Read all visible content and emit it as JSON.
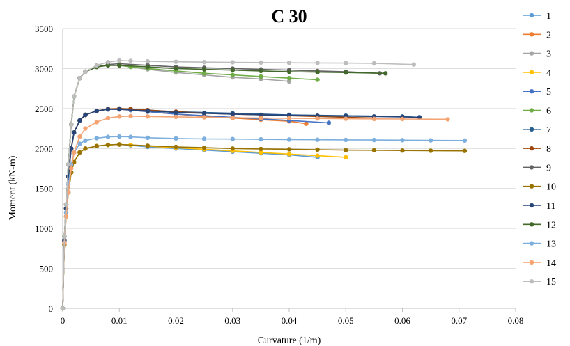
{
  "chart_data": {
    "type": "line",
    "title": "C 30",
    "xlabel": "Curvature (1/m)",
    "ylabel": "Moment (kN-m)",
    "xlim": [
      0,
      0.08
    ],
    "ylim": [
      0,
      3500
    ],
    "xticks": [
      "0",
      "0.01",
      "0.02",
      "0.03",
      "0.04",
      "0.05",
      "0.06",
      "0.07",
      "0.08"
    ],
    "yticks": [
      "0",
      "500",
      "1000",
      "1500",
      "2000",
      "2500",
      "3000",
      "3500"
    ],
    "grid": "horizontal",
    "legend": "right",
    "series": [
      {
        "name": "1",
        "color": "#5B9BD5",
        "x": [
          0,
          0.0003,
          0.0006,
          0.001,
          0.0015,
          0.002,
          0.003,
          0.004,
          0.006,
          0.008,
          0.01,
          0.012,
          0.015,
          0.02,
          0.025,
          0.03,
          0.035,
          0.04,
          0.045
        ],
        "y": [
          0,
          800,
          1150,
          1450,
          1700,
          1830,
          1950,
          2000,
          2030,
          2045,
          2050,
          2040,
          2020,
          2000,
          1980,
          1960,
          1940,
          1920,
          1890
        ]
      },
      {
        "name": "2",
        "color": "#ED7D31",
        "x": [
          0,
          0.0003,
          0.0006,
          0.001,
          0.0015,
          0.002,
          0.003,
          0.004,
          0.006,
          0.008,
          0.01,
          0.012,
          0.015,
          0.02,
          0.025,
          0.03,
          0.035,
          0.04,
          0.043
        ],
        "y": [
          0,
          850,
          1250,
          1650,
          2000,
          2200,
          2350,
          2420,
          2470,
          2490,
          2490,
          2480,
          2460,
          2430,
          2400,
          2380,
          2360,
          2340,
          2310
        ]
      },
      {
        "name": "3",
        "color": "#A5A5A5",
        "x": [
          0,
          0.0003,
          0.0006,
          0.001,
          0.0015,
          0.002,
          0.003,
          0.004,
          0.006,
          0.008,
          0.01,
          0.012,
          0.015,
          0.02,
          0.025,
          0.03,
          0.035,
          0.04
        ],
        "y": [
          0,
          900,
          1300,
          1800,
          2300,
          2650,
          2880,
          2960,
          3020,
          3040,
          3040,
          3020,
          2990,
          2950,
          2920,
          2890,
          2870,
          2840
        ]
      },
      {
        "name": "4",
        "color": "#FFC000",
        "x": [
          0,
          0.0003,
          0.0006,
          0.001,
          0.0015,
          0.002,
          0.003,
          0.004,
          0.006,
          0.008,
          0.01,
          0.012,
          0.015,
          0.02,
          0.025,
          0.03,
          0.035,
          0.04,
          0.045,
          0.05
        ],
        "y": [
          0,
          800,
          1150,
          1450,
          1700,
          1830,
          1950,
          2000,
          2030,
          2045,
          2050,
          2045,
          2030,
          2010,
          1990,
          1970,
          1950,
          1930,
          1910,
          1890
        ]
      },
      {
        "name": "5",
        "color": "#4472C4",
        "x": [
          0,
          0.0003,
          0.0006,
          0.001,
          0.0015,
          0.002,
          0.003,
          0.004,
          0.006,
          0.008,
          0.01,
          0.012,
          0.015,
          0.02,
          0.025,
          0.03,
          0.035,
          0.04,
          0.047
        ],
        "y": [
          0,
          850,
          1250,
          1650,
          2000,
          2200,
          2350,
          2420,
          2470,
          2490,
          2490,
          2480,
          2460,
          2430,
          2410,
          2390,
          2370,
          2350,
          2320
        ]
      },
      {
        "name": "6",
        "color": "#70AD47",
        "x": [
          0,
          0.0003,
          0.0006,
          0.001,
          0.0015,
          0.002,
          0.003,
          0.004,
          0.006,
          0.008,
          0.01,
          0.012,
          0.015,
          0.02,
          0.025,
          0.03,
          0.035,
          0.04,
          0.045
        ],
        "y": [
          0,
          900,
          1300,
          1800,
          2300,
          2650,
          2880,
          2960,
          3020,
          3040,
          3040,
          3020,
          3000,
          2970,
          2940,
          2920,
          2900,
          2880,
          2860
        ]
      },
      {
        "name": "7",
        "color": "#255E91",
        "x": [
          0,
          0.0003,
          0.0006,
          0.001,
          0.0015,
          0.002,
          0.003,
          0.004,
          0.006,
          0.008,
          0.01,
          0.015,
          0.02,
          0.03,
          0.04,
          0.05,
          0.06,
          0.063
        ],
        "y": [
          0,
          850,
          1250,
          1650,
          2000,
          2200,
          2350,
          2420,
          2470,
          2490,
          2500,
          2480,
          2460,
          2440,
          2420,
          2410,
          2400,
          2390
        ]
      },
      {
        "name": "8",
        "color": "#9E480E",
        "x": [
          0,
          0.0003,
          0.0006,
          0.001,
          0.0015,
          0.002,
          0.003,
          0.004,
          0.006,
          0.008,
          0.01,
          0.012,
          0.015,
          0.02,
          0.025,
          0.03,
          0.035,
          0.04,
          0.045,
          0.05,
          0.055
        ],
        "y": [
          0,
          850,
          1250,
          1650,
          2000,
          2200,
          2350,
          2420,
          2470,
          2495,
          2500,
          2495,
          2480,
          2460,
          2440,
          2430,
          2420,
          2410,
          2400,
          2390,
          2380
        ]
      },
      {
        "name": "9",
        "color": "#636363",
        "x": [
          0,
          0.0003,
          0.0006,
          0.001,
          0.0015,
          0.002,
          0.003,
          0.004,
          0.006,
          0.008,
          0.01,
          0.015,
          0.02,
          0.025,
          0.03,
          0.035,
          0.04,
          0.045,
          0.05,
          0.056
        ],
        "y": [
          0,
          900,
          1300,
          1800,
          2300,
          2650,
          2880,
          2960,
          3020,
          3050,
          3060,
          3040,
          3020,
          3010,
          3000,
          2990,
          2980,
          2970,
          2960,
          2940
        ]
      },
      {
        "name": "10",
        "color": "#997300",
        "x": [
          0,
          0.0003,
          0.0006,
          0.001,
          0.0015,
          0.002,
          0.003,
          0.004,
          0.006,
          0.008,
          0.01,
          0.015,
          0.02,
          0.025,
          0.03,
          0.035,
          0.04,
          0.045,
          0.05,
          0.055,
          0.06,
          0.065,
          0.071
        ],
        "y": [
          0,
          800,
          1150,
          1450,
          1700,
          1830,
          1950,
          2000,
          2030,
          2045,
          2050,
          2035,
          2020,
          2010,
          2000,
          1995,
          1990,
          1985,
          1980,
          1978,
          1975,
          1972,
          1970
        ]
      },
      {
        "name": "11",
        "color": "#264478",
        "x": [
          0,
          0.0003,
          0.0006,
          0.001,
          0.0015,
          0.002,
          0.003,
          0.004,
          0.006,
          0.008,
          0.01,
          0.015,
          0.02,
          0.025,
          0.03,
          0.035,
          0.04,
          0.045,
          0.05,
          0.055,
          0.06,
          0.063
        ],
        "y": [
          0,
          850,
          1250,
          1650,
          2000,
          2200,
          2350,
          2420,
          2470,
          2490,
          2490,
          2470,
          2450,
          2440,
          2430,
          2420,
          2415,
          2410,
          2405,
          2400,
          2395,
          2390
        ]
      },
      {
        "name": "12",
        "color": "#43682B",
        "x": [
          0,
          0.0003,
          0.0006,
          0.001,
          0.0015,
          0.002,
          0.003,
          0.004,
          0.006,
          0.008,
          0.01,
          0.015,
          0.02,
          0.025,
          0.03,
          0.035,
          0.04,
          0.045,
          0.05,
          0.057
        ],
        "y": [
          0,
          900,
          1300,
          1800,
          2300,
          2650,
          2880,
          2960,
          3020,
          3040,
          3040,
          3020,
          3000,
          2990,
          2980,
          2970,
          2960,
          2955,
          2950,
          2940
        ]
      },
      {
        "name": "13",
        "color": "#7CAFDD",
        "x": [
          0,
          0.0003,
          0.0006,
          0.001,
          0.0015,
          0.002,
          0.003,
          0.004,
          0.006,
          0.008,
          0.01,
          0.012,
          0.015,
          0.02,
          0.025,
          0.03,
          0.035,
          0.04,
          0.045,
          0.05,
          0.055,
          0.06,
          0.065,
          0.071
        ],
        "y": [
          0,
          820,
          1200,
          1550,
          1800,
          1950,
          2060,
          2100,
          2130,
          2145,
          2150,
          2145,
          2135,
          2125,
          2120,
          2118,
          2115,
          2112,
          2110,
          2108,
          2106,
          2104,
          2102,
          2100
        ]
      },
      {
        "name": "14",
        "color": "#F4A373",
        "x": [
          0,
          0.0003,
          0.0006,
          0.001,
          0.0015,
          0.002,
          0.003,
          0.004,
          0.006,
          0.008,
          0.01,
          0.012,
          0.015,
          0.02,
          0.025,
          0.03,
          0.035,
          0.04,
          0.045,
          0.05,
          0.055,
          0.06,
          0.068
        ],
        "y": [
          0,
          820,
          1150,
          1450,
          1750,
          1950,
          2150,
          2250,
          2330,
          2380,
          2400,
          2405,
          2400,
          2395,
          2390,
          2385,
          2380,
          2378,
          2375,
          2372,
          2370,
          2368,
          2365
        ]
      },
      {
        "name": "15",
        "color": "#BDBDBD",
        "x": [
          0,
          0.0003,
          0.0006,
          0.001,
          0.0015,
          0.002,
          0.003,
          0.004,
          0.006,
          0.008,
          0.01,
          0.012,
          0.015,
          0.02,
          0.025,
          0.03,
          0.035,
          0.04,
          0.045,
          0.05,
          0.055,
          0.062
        ],
        "y": [
          0,
          900,
          1300,
          1800,
          2300,
          2650,
          2880,
          2960,
          3040,
          3080,
          3100,
          3095,
          3090,
          3085,
          3080,
          3078,
          3075,
          3072,
          3070,
          3068,
          3065,
          3050
        ]
      }
    ]
  }
}
